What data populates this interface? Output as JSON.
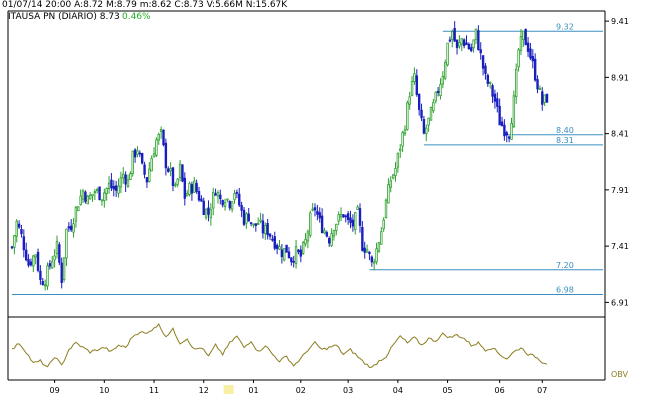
{
  "header": {
    "line1": "01/07/14 20:00  A:8.72  M:8.79  m:8.62  C:8.73  V:5.66M  N:15.67K",
    "line2": "ITAUSA PN (DIARIO)  8.73",
    "change": "0.46%"
  },
  "colors": {
    "up": "#2ea02e",
    "down": "#1a1fbf",
    "level_line": "#3a8fc0",
    "obv": "#8b7d20",
    "axis": "#000000",
    "highlight_month": "#e8d200"
  },
  "chart_data": {
    "type": "candlestick",
    "title": "ITAUSA PN (DIARIO)",
    "yticks": [
      "9.41",
      "8.91",
      "8.41",
      "7.91",
      "7.41",
      "6.91"
    ],
    "ytick_values": [
      9.41,
      8.91,
      8.41,
      7.91,
      7.41,
      6.91
    ],
    "ylim": [
      6.78,
      9.5
    ],
    "xticks": [
      "09",
      "10",
      "11",
      "12",
      "01",
      "02",
      "03",
      "04",
      "05",
      "06",
      "07"
    ],
    "xlim": [
      0,
      226
    ],
    "xtick_index": [
      18,
      39,
      60,
      81,
      102,
      122,
      142,
      163,
      184,
      206,
      224
    ],
    "levels": [
      {
        "label": "9.32",
        "value": 9.32,
        "from_index": 182
      },
      {
        "label": "8.40",
        "value": 8.4,
        "from_index": 209
      },
      {
        "label": "8.31",
        "value": 8.31,
        "from_index": 174
      },
      {
        "label": "7.20",
        "value": 7.2,
        "from_index": 151
      },
      {
        "label": "6.98",
        "value": 6.98,
        "from_index": 0
      }
    ],
    "anchors": [
      [
        0,
        7.4
      ],
      [
        2,
        7.62
      ],
      [
        4,
        7.5
      ],
      [
        7,
        7.25
      ],
      [
        10,
        7.35
      ],
      [
        12,
        7.1
      ],
      [
        14,
        7.12
      ],
      [
        17,
        7.3
      ],
      [
        19,
        7.4
      ],
      [
        21,
        7.12
      ],
      [
        23,
        7.55
      ],
      [
        25,
        7.6
      ],
      [
        28,
        7.8
      ],
      [
        30,
        7.9
      ],
      [
        32,
        7.82
      ],
      [
        35,
        7.9
      ],
      [
        38,
        7.86
      ],
      [
        41,
        7.95
      ],
      [
        44,
        7.9
      ],
      [
        47,
        8.05
      ],
      [
        49,
        7.98
      ],
      [
        51,
        8.2
      ],
      [
        53,
        8.28
      ],
      [
        55,
        8.1
      ],
      [
        57,
        8.0
      ],
      [
        59,
        8.2
      ],
      [
        61,
        8.35
      ],
      [
        63,
        8.4
      ],
      [
        65,
        8.15
      ],
      [
        67,
        8.05
      ],
      [
        69,
        7.9
      ],
      [
        71,
        8.1
      ],
      [
        73,
        7.85
      ],
      [
        75,
        7.92
      ],
      [
        77,
        7.95
      ],
      [
        79,
        7.85
      ],
      [
        81,
        7.75
      ],
      [
        83,
        7.7
      ],
      [
        86,
        7.92
      ],
      [
        88,
        7.82
      ],
      [
        90,
        7.85
      ],
      [
        92,
        7.8
      ],
      [
        94,
        7.9
      ],
      [
        96,
        7.78
      ],
      [
        98,
        7.65
      ],
      [
        100,
        7.68
      ],
      [
        102,
        7.58
      ],
      [
        104,
        7.62
      ],
      [
        106,
        7.55
      ],
      [
        108,
        7.55
      ],
      [
        110,
        7.48
      ],
      [
        112,
        7.42
      ],
      [
        114,
        7.36
      ],
      [
        116,
        7.38
      ],
      [
        118,
        7.3
      ],
      [
        120,
        7.35
      ],
      [
        122,
        7.32
      ],
      [
        124,
        7.45
      ],
      [
        126,
        7.65
      ],
      [
        128,
        7.75
      ],
      [
        130,
        7.62
      ],
      [
        132,
        7.55
      ],
      [
        134,
        7.48
      ],
      [
        136,
        7.6
      ],
      [
        138,
        7.65
      ],
      [
        140,
        7.7
      ],
      [
        142,
        7.62
      ],
      [
        144,
        7.6
      ],
      [
        146,
        7.7
      ],
      [
        148,
        7.42
      ],
      [
        150,
        7.38
      ],
      [
        152,
        7.25
      ],
      [
        154,
        7.38
      ],
      [
        156,
        7.55
      ],
      [
        158,
        7.8
      ],
      [
        160,
        8.0
      ],
      [
        162,
        8.1
      ],
      [
        164,
        8.3
      ],
      [
        166,
        8.5
      ],
      [
        168,
        8.78
      ],
      [
        170,
        8.9
      ],
      [
        172,
        8.6
      ],
      [
        174,
        8.4
      ],
      [
        176,
        8.52
      ],
      [
        178,
        8.65
      ],
      [
        180,
        8.8
      ],
      [
        182,
        8.95
      ],
      [
        184,
        9.2
      ],
      [
        186,
        9.32
      ],
      [
        188,
        9.15
      ],
      [
        190,
        9.25
      ],
      [
        192,
        9.2
      ],
      [
        194,
        9.15
      ],
      [
        196,
        9.3
      ],
      [
        198,
        9.1
      ],
      [
        200,
        8.9
      ],
      [
        202,
        8.82
      ],
      [
        204,
        8.7
      ],
      [
        206,
        8.52
      ],
      [
        208,
        8.45
      ],
      [
        210,
        8.42
      ],
      [
        212,
        8.7
      ],
      [
        214,
        9.15
      ],
      [
        216,
        9.28
      ],
      [
        218,
        9.18
      ],
      [
        220,
        9.02
      ],
      [
        222,
        8.85
      ],
      [
        224,
        8.68
      ],
      [
        226,
        8.73
      ]
    ],
    "obv": {
      "label": "OBV",
      "anchors": [
        [
          0,
          0.45
        ],
        [
          3,
          0.6
        ],
        [
          6,
          0.4
        ],
        [
          9,
          0.15
        ],
        [
          12,
          0.2
        ],
        [
          15,
          0.05
        ],
        [
          18,
          0.3
        ],
        [
          21,
          0.1
        ],
        [
          24,
          0.45
        ],
        [
          27,
          0.6
        ],
        [
          30,
          0.5
        ],
        [
          33,
          0.4
        ],
        [
          36,
          0.45
        ],
        [
          39,
          0.5
        ],
        [
          42,
          0.4
        ],
        [
          45,
          0.55
        ],
        [
          48,
          0.5
        ],
        [
          51,
          0.75
        ],
        [
          54,
          0.85
        ],
        [
          57,
          0.8
        ],
        [
          60,
          0.95
        ],
        [
          62,
          1.0
        ],
        [
          65,
          0.75
        ],
        [
          68,
          0.9
        ],
        [
          71,
          0.6
        ],
        [
          74,
          0.7
        ],
        [
          77,
          0.45
        ],
        [
          80,
          0.5
        ],
        [
          83,
          0.3
        ],
        [
          86,
          0.55
        ],
        [
          89,
          0.35
        ],
        [
          92,
          0.6
        ],
        [
          95,
          0.75
        ],
        [
          98,
          0.5
        ],
        [
          101,
          0.65
        ],
        [
          104,
          0.4
        ],
        [
          107,
          0.55
        ],
        [
          110,
          0.35
        ],
        [
          113,
          0.2
        ],
        [
          116,
          0.3
        ],
        [
          119,
          0.1
        ],
        [
          122,
          0.25
        ],
        [
          125,
          0.45
        ],
        [
          128,
          0.6
        ],
        [
          131,
          0.45
        ],
        [
          134,
          0.5
        ],
        [
          137,
          0.55
        ],
        [
          140,
          0.35
        ],
        [
          143,
          0.45
        ],
        [
          146,
          0.3
        ],
        [
          149,
          0.15
        ],
        [
          152,
          0.05
        ],
        [
          155,
          0.2
        ],
        [
          158,
          0.3
        ],
        [
          161,
          0.55
        ],
        [
          164,
          0.75
        ],
        [
          167,
          0.6
        ],
        [
          170,
          0.72
        ],
        [
          173,
          0.55
        ],
        [
          176,
          0.7
        ],
        [
          179,
          0.65
        ],
        [
          182,
          0.8
        ],
        [
          185,
          0.72
        ],
        [
          188,
          0.78
        ],
        [
          191,
          0.7
        ],
        [
          194,
          0.55
        ],
        [
          197,
          0.6
        ],
        [
          200,
          0.45
        ],
        [
          203,
          0.5
        ],
        [
          206,
          0.35
        ],
        [
          209,
          0.25
        ],
        [
          212,
          0.4
        ],
        [
          215,
          0.5
        ],
        [
          218,
          0.35
        ],
        [
          221,
          0.3
        ],
        [
          224,
          0.18
        ],
        [
          226,
          0.15
        ]
      ]
    },
    "legend": "OBV"
  }
}
